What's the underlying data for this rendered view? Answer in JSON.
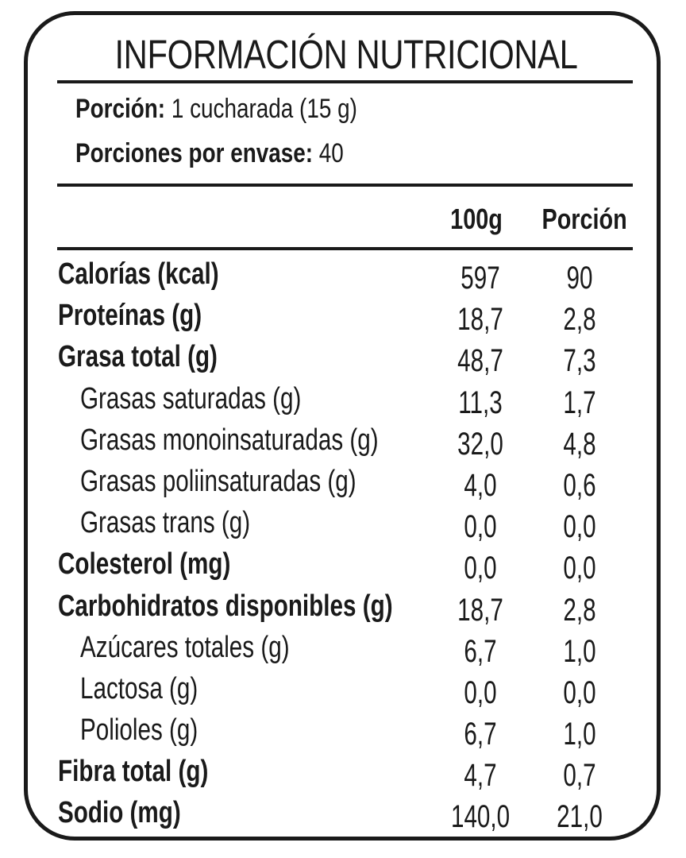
{
  "label": {
    "title": "INFORMACIÓN NUTRICIONAL",
    "serving": {
      "portion_label": "Porción:",
      "portion_value": "1 cucharada (15 g)",
      "per_pack_label": "Porciones por envase:",
      "per_pack_value": "40"
    },
    "columns": {
      "per_100g": "100g",
      "per_portion": "Porción"
    },
    "rows": [
      {
        "name": "Calorías (kcal)",
        "per_100g": "597",
        "per_portion": "90",
        "bold": true
      },
      {
        "name": "Proteínas (g)",
        "per_100g": "18,7",
        "per_portion": "2,8",
        "bold": true
      },
      {
        "name": "Grasa total (g)",
        "per_100g": "48,7",
        "per_portion": "7,3",
        "bold": true
      },
      {
        "name": "Grasas saturadas (g)",
        "per_100g": "11,3",
        "per_portion": "1,7",
        "bold": false
      },
      {
        "name": "Grasas monoinsaturadas (g)",
        "per_100g": "32,0",
        "per_portion": "4,8",
        "bold": false
      },
      {
        "name": "Grasas poliinsaturadas (g)",
        "per_100g": "4,0",
        "per_portion": "0,6",
        "bold": false
      },
      {
        "name": "Grasas trans (g)",
        "per_100g": "0,0",
        "per_portion": "0,0",
        "bold": false
      },
      {
        "name": "Colesterol (mg)",
        "per_100g": "0,0",
        "per_portion": "0,0",
        "bold": true
      },
      {
        "name": "Carbohidratos disponibles (g)",
        "per_100g": "18,7",
        "per_portion": "2,8",
        "bold": true
      },
      {
        "name": "Azúcares totales (g)",
        "per_100g": "6,7",
        "per_portion": "1,0",
        "bold": false
      },
      {
        "name": "Lactosa (g)",
        "per_100g": "0,0",
        "per_portion": "0,0",
        "bold": false
      },
      {
        "name": "Polioles (g)",
        "per_100g": "6,7",
        "per_portion": "1,0",
        "bold": false
      },
      {
        "name": "Fibra total (g)",
        "per_100g": "4,7",
        "per_portion": "0,7",
        "bold": true
      },
      {
        "name": "Sodio (mg)",
        "per_100g": "140,0",
        "per_portion": "21,0",
        "bold": true
      }
    ]
  }
}
